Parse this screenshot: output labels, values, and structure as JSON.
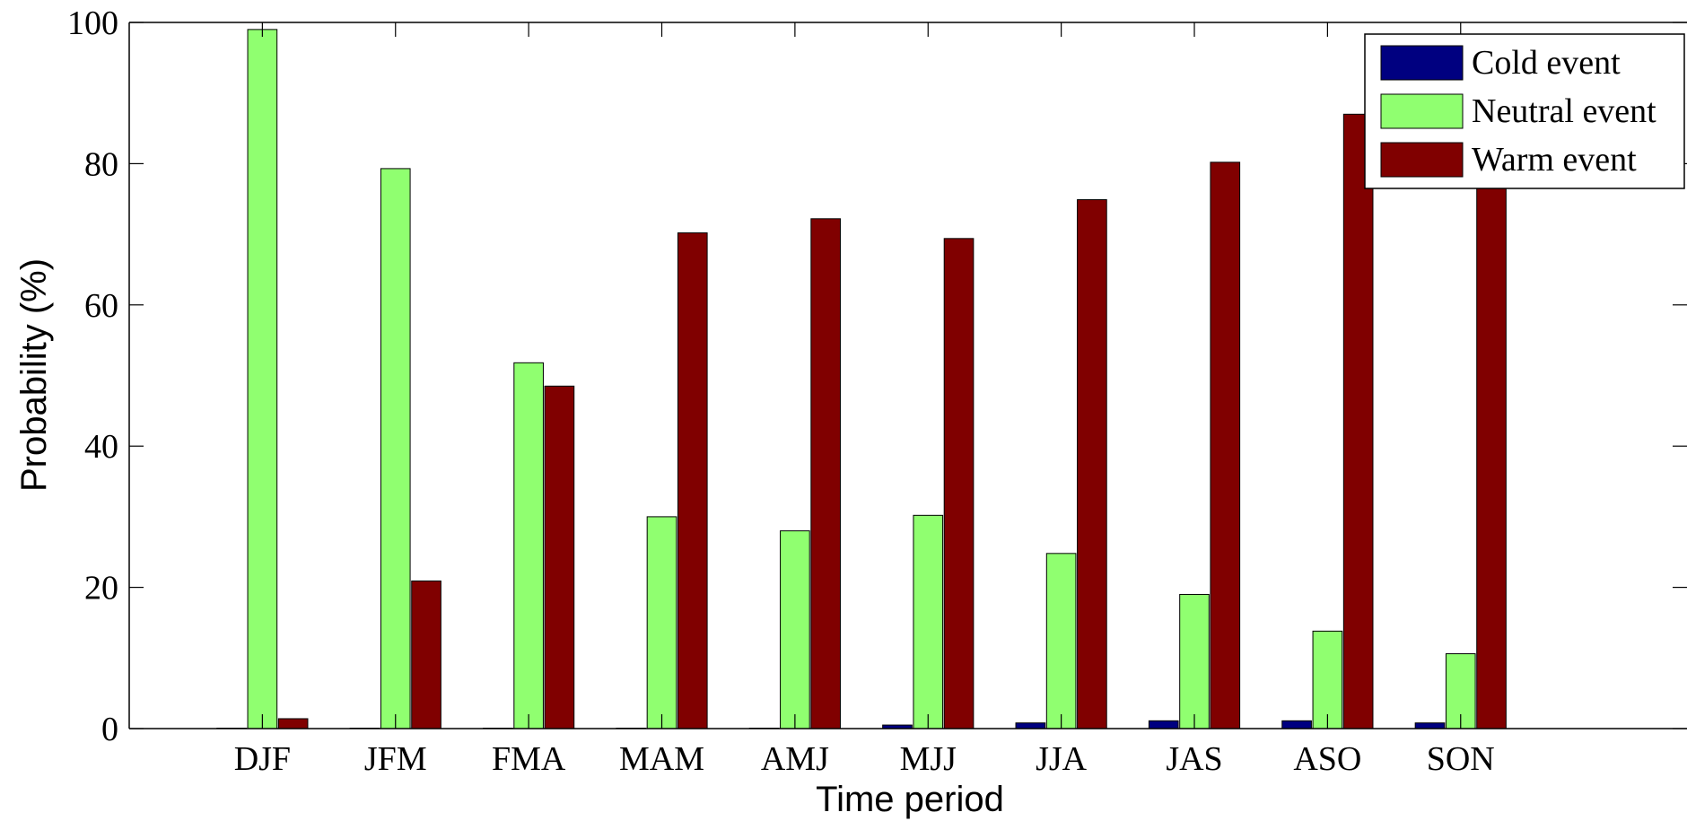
{
  "chart_data": {
    "type": "bar",
    "title": "",
    "xlabel": "Time period",
    "ylabel": "Probability (%)",
    "ylim": [
      0,
      100
    ],
    "yticks": [
      "0",
      "20",
      "40",
      "60",
      "80",
      "100"
    ],
    "xlim": [
      0,
      11.7
    ],
    "categories": [
      "DJF",
      "JFM",
      "FMA",
      "MAM",
      "AMJ",
      "MJJ",
      "JJA",
      "JAS",
      "ASO",
      "SON"
    ],
    "series": [
      {
        "name": "Cold event",
        "color": "#000080",
        "values": [
          0,
          0,
          0,
          0,
          0,
          0.5,
          0.8,
          1.1,
          1.1,
          0.8
        ]
      },
      {
        "name": "Neutral event",
        "color": "#90ff70",
        "values": [
          99,
          79.3,
          51.8,
          30,
          28,
          30.2,
          24.8,
          19,
          13.8,
          10.6
        ]
      },
      {
        "name": "Warm event",
        "color": "#800000",
        "values": [
          1.4,
          20.9,
          48.5,
          70.2,
          72.2,
          69.4,
          74.9,
          80.2,
          87,
          88
        ]
      }
    ],
    "grid": false,
    "legend": "top-right"
  }
}
